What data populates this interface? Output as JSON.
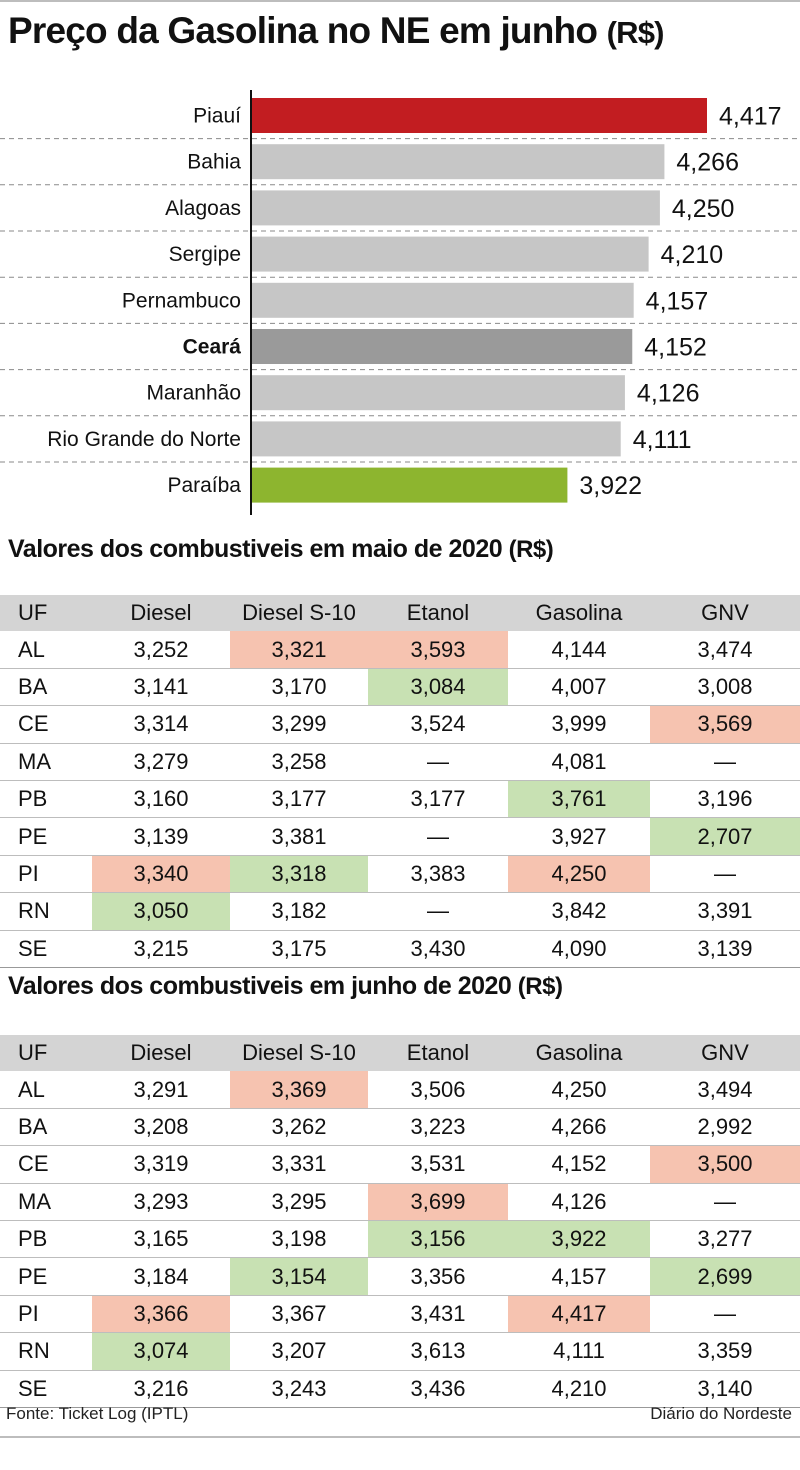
{
  "title": {
    "main": "Preço da Gasolina no NE em junho",
    "unit": "(R$)"
  },
  "chart_data": {
    "type": "bar",
    "orientation": "horizontal",
    "title": "Preço da Gasolina no NE em junho (R$)",
    "categories": [
      "Piauí",
      "Bahia",
      "Alagoas",
      "Sergipe",
      "Pernambuco",
      "Ceará",
      "Maranhão",
      "Rio Grande do Norte",
      "Paraíba"
    ],
    "values": [
      4.417,
      4.266,
      4.25,
      4.21,
      4.157,
      4.152,
      4.126,
      4.111,
      3.922
    ],
    "value_labels": [
      "4,417",
      "4,266",
      "4,250",
      "4,210",
      "4,157",
      "4,152",
      "4,126",
      "4,111",
      "3,922"
    ],
    "bar_colors": [
      "#c21d21",
      "#c6c6c6",
      "#c6c6c6",
      "#c6c6c6",
      "#c6c6c6",
      "#9a9a9a",
      "#c6c6c6",
      "#c6c6c6",
      "#8db52f"
    ],
    "bold_category": "Ceará",
    "xlim": [
      2.8,
      4.417
    ],
    "xlabel": "",
    "ylabel": "",
    "grid": false,
    "legend": "none"
  },
  "colors": {
    "highlight_high": "#f6c3b0",
    "highlight_low": "#c8e1b3",
    "header": "#d4d4d4"
  },
  "tables": [
    {
      "title": "Valores dos combustiveis em maio de 2020",
      "unit": "(R$)",
      "headers": [
        "UF",
        "Diesel",
        "Diesel S-10",
        "Etanol",
        "Gasolina",
        "GNV"
      ],
      "rows": [
        [
          "AL",
          "3,252",
          "3,321",
          "3,593",
          "4,144",
          "3,474"
        ],
        [
          "BA",
          "3,141",
          "3,170",
          "3,084",
          "4,007",
          "3,008"
        ],
        [
          "CE",
          "3,314",
          "3,299",
          "3,524",
          "3,999",
          "3,569"
        ],
        [
          "MA",
          "3,279",
          "3,258",
          "—",
          "4,081",
          "—"
        ],
        [
          "PB",
          "3,160",
          "3,177",
          "3,177",
          "3,761",
          "3,196"
        ],
        [
          "PE",
          "3,139",
          "3,381",
          "—",
          "3,927",
          "2,707"
        ],
        [
          "PI",
          "3,340",
          "3,318",
          "3,383",
          "4,250",
          "—"
        ],
        [
          "RN",
          "3,050",
          "3,182",
          "—",
          "3,842",
          "3,391"
        ],
        [
          "SE",
          "3,215",
          "3,175",
          "3,430",
          "4,090",
          "3,139"
        ]
      ],
      "highlights": [
        [
          "",
          "",
          "red",
          "red",
          "",
          ""
        ],
        [
          "",
          "",
          "",
          "green",
          "",
          ""
        ],
        [
          "",
          "",
          "",
          "",
          "",
          "red"
        ],
        [
          "",
          "",
          "",
          "",
          "",
          ""
        ],
        [
          "",
          "",
          "",
          "",
          "green",
          ""
        ],
        [
          "",
          "",
          "",
          "",
          "",
          "green"
        ],
        [
          "",
          "red",
          "green",
          "",
          "red",
          ""
        ],
        [
          "",
          "green",
          "",
          "",
          "",
          ""
        ],
        [
          "",
          "",
          "",
          "",
          "",
          ""
        ]
      ]
    },
    {
      "title": "Valores dos combustiveis em junho de 2020",
      "unit": "(R$)",
      "headers": [
        "UF",
        "Diesel",
        "Diesel S-10",
        "Etanol",
        "Gasolina",
        "GNV"
      ],
      "rows": [
        [
          "AL",
          "3,291",
          "3,369",
          "3,506",
          "4,250",
          "3,494"
        ],
        [
          "BA",
          "3,208",
          "3,262",
          "3,223",
          "4,266",
          "2,992"
        ],
        [
          "CE",
          "3,319",
          "3,331",
          "3,531",
          "4,152",
          "3,500"
        ],
        [
          "MA",
          "3,293",
          "3,295",
          "3,699",
          "4,126",
          "—"
        ],
        [
          "PB",
          "3,165",
          "3,198",
          "3,156",
          "3,922",
          "3,277"
        ],
        [
          "PE",
          "3,184",
          "3,154",
          "3,356",
          "4,157",
          "2,699"
        ],
        [
          "PI",
          "3,366",
          "3,367",
          "3,431",
          "4,417",
          "—"
        ],
        [
          "RN",
          "3,074",
          "3,207",
          "3,613",
          "4,111",
          "3,359"
        ],
        [
          "SE",
          "3,216",
          "3,243",
          "3,436",
          "4,210",
          "3,140"
        ]
      ],
      "highlights": [
        [
          "",
          "",
          "red",
          "",
          "",
          ""
        ],
        [
          "",
          "",
          "",
          "",
          "",
          ""
        ],
        [
          "",
          "",
          "",
          "",
          "",
          "red"
        ],
        [
          "",
          "",
          "",
          "red",
          "",
          ""
        ],
        [
          "",
          "",
          "",
          "green",
          "green",
          ""
        ],
        [
          "",
          "",
          "green",
          "",
          "",
          "green"
        ],
        [
          "",
          "red",
          "",
          "",
          "red",
          ""
        ],
        [
          "",
          "green",
          "",
          "",
          "",
          ""
        ],
        [
          "",
          "",
          "",
          "",
          "",
          ""
        ]
      ]
    }
  ],
  "footer": {
    "source": "Fonte: Ticket Log (IPTL)",
    "credit": "Diário do Nordeste"
  }
}
